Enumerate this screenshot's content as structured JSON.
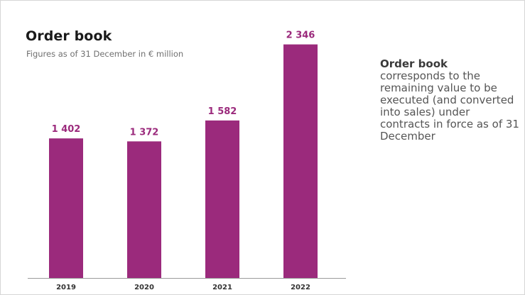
{
  "colors": {
    "bar": "#9b2a7c",
    "value_label": "#9b2a7c",
    "axis": "#9a9a9a",
    "tick_label": "#333333"
  },
  "note": {
    "title": "Order book",
    "body": "corresponds to the remaining value to be executed (and converted into sales) under contracts in force as of 31 December"
  },
  "chart_data": {
    "type": "bar",
    "title": "Order book",
    "subtitle": "Figures as of 31 December in € million",
    "categories": [
      "2019",
      "2020",
      "2021",
      "2022"
    ],
    "values": [
      1402,
      1372,
      1582,
      2346
    ],
    "value_labels": [
      "1 402",
      "1 372",
      "1 582",
      "2 346"
    ],
    "xlabel": "",
    "ylabel": "",
    "ylim": [
      0,
      2500
    ],
    "grid": false,
    "legend": "none"
  }
}
